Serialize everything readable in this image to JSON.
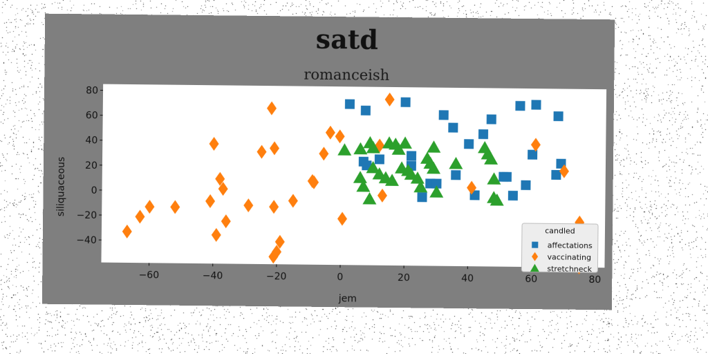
{
  "chart_data": {
    "type": "scatter",
    "title": "satd",
    "subtitle": "romanceish",
    "xlabel": "jem",
    "ylabel": "siliquaceous",
    "xlim": [
      -75,
      83
    ],
    "ylim": [
      -58,
      85
    ],
    "xticks": [
      -60,
      -40,
      -20,
      0,
      20,
      40,
      60,
      80
    ],
    "yticks": [
      -40,
      -20,
      0,
      20,
      40,
      60,
      80
    ],
    "grid": false,
    "legend": {
      "title": "candled",
      "position": "lower-right"
    },
    "series": [
      {
        "name": "affectations",
        "marker": "square",
        "color": "#1f77b4",
        "points": [
          [
            2.5,
            71
          ],
          [
            7.5,
            66
          ],
          [
            20,
            73
          ],
          [
            32,
            63
          ],
          [
            35,
            53
          ],
          [
            44.5,
            48
          ],
          [
            47,
            60
          ],
          [
            40,
            40
          ],
          [
            56,
            71
          ],
          [
            61,
            72
          ],
          [
            68,
            63
          ],
          [
            60,
            32
          ],
          [
            69,
            25
          ],
          [
            67.5,
            16
          ],
          [
            22,
            30
          ],
          [
            7,
            25
          ],
          [
            8,
            22
          ],
          [
            12,
            27
          ],
          [
            22,
            22
          ],
          [
            28,
            8
          ],
          [
            30,
            8
          ],
          [
            25.5,
            -3
          ],
          [
            36,
            15
          ],
          [
            42,
            -1
          ],
          [
            51,
            14
          ],
          [
            52,
            14
          ],
          [
            54,
            -1
          ],
          [
            58,
            7.5
          ]
        ]
      },
      {
        "name": "vaccinating",
        "marker": "diamond",
        "color": "#ff7f0e",
        "points": [
          [
            -67,
            -33
          ],
          [
            -63,
            -21
          ],
          [
            -60,
            -13
          ],
          [
            -52,
            -13
          ],
          [
            -41,
            -8
          ],
          [
            -40,
            38
          ],
          [
            -39,
            -35
          ],
          [
            -38,
            10
          ],
          [
            -37,
            2
          ],
          [
            -36,
            -24
          ],
          [
            -29,
            -11
          ],
          [
            -25,
            32
          ],
          [
            -22,
            67
          ],
          [
            -21,
            35
          ],
          [
            -21,
            -12
          ],
          [
            -21,
            -52
          ],
          [
            -20,
            -48
          ],
          [
            -19,
            -40
          ],
          [
            -15,
            -7
          ],
          [
            -9,
            9
          ],
          [
            -8.5,
            8
          ],
          [
            -5.5,
            31
          ],
          [
            -3.5,
            48
          ],
          [
            -0.5,
            45
          ],
          [
            0.5,
            -21
          ],
          [
            12,
            38
          ],
          [
            13,
            -2
          ],
          [
            15,
            75
          ],
          [
            41,
            5
          ],
          [
            61,
            40
          ],
          [
            70,
            19
          ],
          [
            75,
            -22
          ],
          [
            75,
            -58
          ]
        ]
      },
      {
        "name": "stretchneck",
        "marker": "triangle",
        "color": "#2ca02c",
        "points": [
          [
            1,
            34
          ],
          [
            6,
            35
          ],
          [
            9,
            40
          ],
          [
            10,
            36
          ],
          [
            6,
            12
          ],
          [
            7,
            5
          ],
          [
            10,
            20
          ],
          [
            12,
            15
          ],
          [
            14,
            12
          ],
          [
            15,
            40
          ],
          [
            17,
            39
          ],
          [
            18,
            35
          ],
          [
            19,
            20
          ],
          [
            20,
            40
          ],
          [
            21,
            18
          ],
          [
            22,
            15
          ],
          [
            24,
            12
          ],
          [
            25,
            5
          ],
          [
            27,
            28
          ],
          [
            28,
            24
          ],
          [
            29,
            37
          ],
          [
            29,
            20
          ],
          [
            30,
            1
          ],
          [
            9,
            -5
          ],
          [
            36,
            24
          ],
          [
            45,
            37
          ],
          [
            46,
            32
          ],
          [
            47,
            28
          ],
          [
            48,
            12
          ],
          [
            48,
            -3
          ],
          [
            49,
            -5
          ],
          [
            16,
            10
          ]
        ]
      }
    ]
  }
}
